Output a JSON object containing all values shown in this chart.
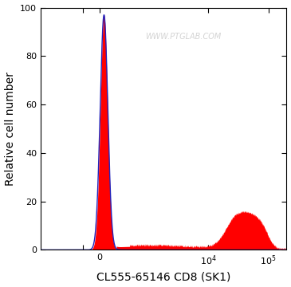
{
  "title": "CL555-65146 CD8 (SK1)",
  "ylabel": "Relative cell number",
  "xlabel": "CL555-65146 CD8 (SK1)",
  "watermark": "WWW.PTGLAB.COM",
  "ylim": [
    0,
    100
  ],
  "background_color": "#ffffff",
  "fill_color_red": "#ff0000",
  "line_color_blue": "#2222bb",
  "tick_fontsize": 8,
  "label_fontsize": 10,
  "symlog_linthresh": 300,
  "symlog_linscale": 0.25,
  "xlim_left": -1500,
  "xlim_right": 200000
}
